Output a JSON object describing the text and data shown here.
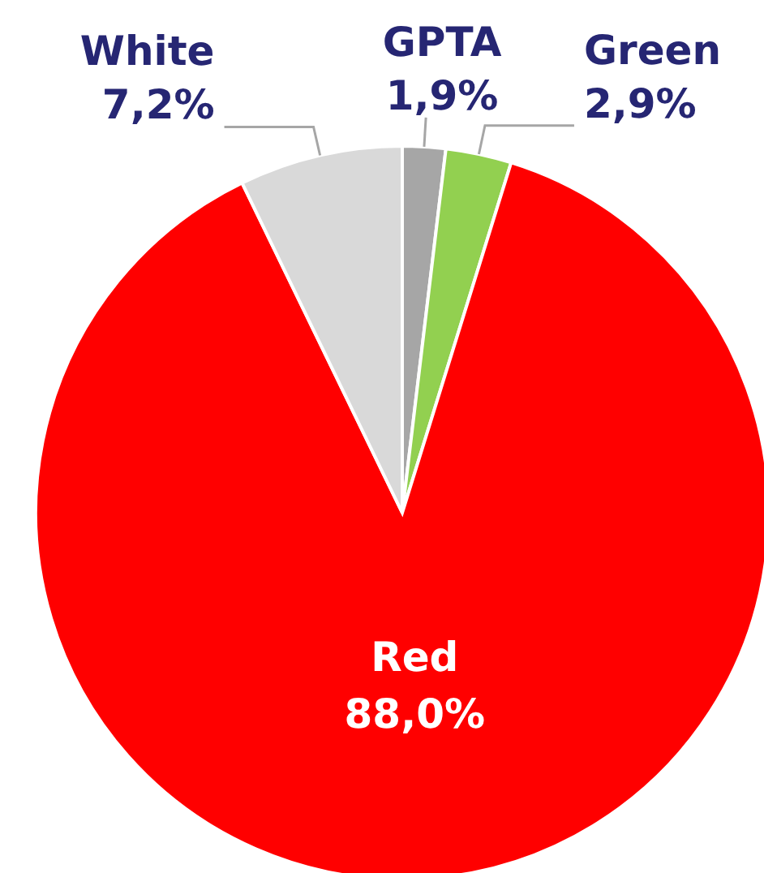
{
  "chart_data": {
    "type": "pie",
    "categories": [
      "GPTA",
      "Green",
      "Red",
      "White"
    ],
    "values": [
      1.9,
      2.9,
      88.0,
      7.2
    ],
    "value_labels": [
      "1,9%",
      "2,9%",
      "88,0%",
      "7,2%"
    ],
    "colors": [
      "#a6a6a6",
      "#92d050",
      "#ff0000",
      "#d9d9d9"
    ],
    "legend": false
  }
}
